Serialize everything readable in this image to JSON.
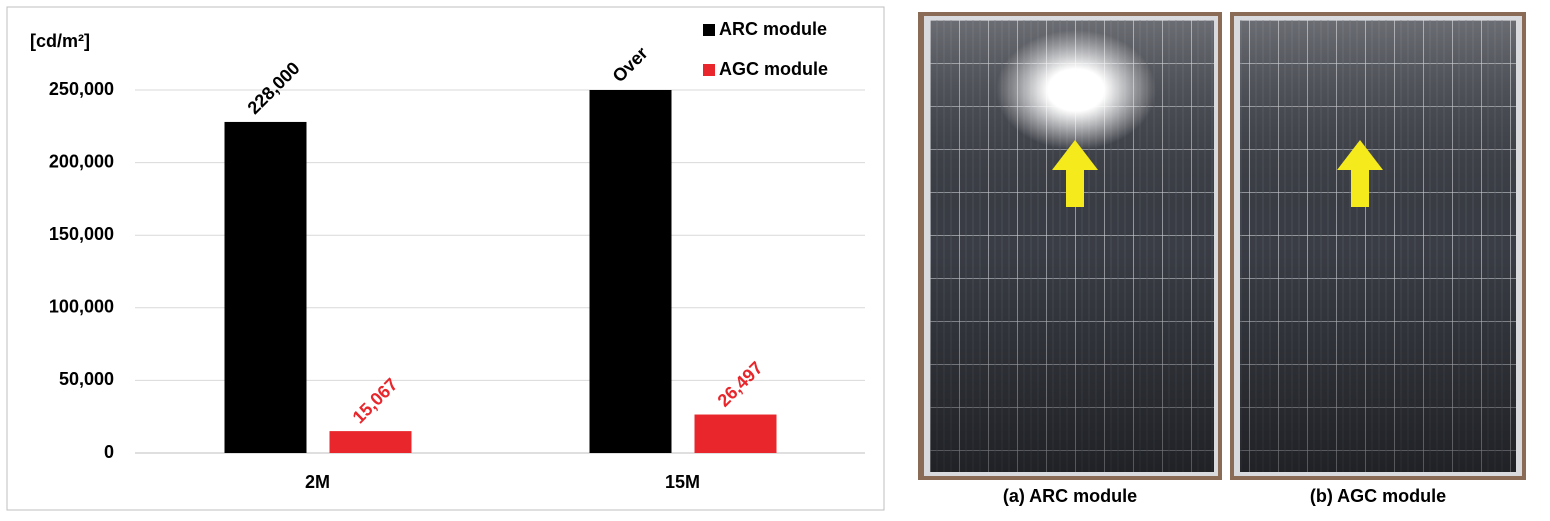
{
  "chart_data": {
    "type": "bar",
    "y_label": "[cd/m²]",
    "categories": [
      "2M",
      "15M"
    ],
    "series": [
      {
        "name": "ARC module",
        "color": "#000000",
        "values": [
          228000,
          250000
        ],
        "value_labels": [
          "228,000",
          "Over"
        ]
      },
      {
        "name": "AGC module",
        "color": "#e8262b",
        "values": [
          15067,
          26497
        ],
        "value_labels": [
          "15,067",
          "26,497"
        ]
      }
    ],
    "ylim": [
      0,
      250000
    ],
    "yticks": [
      0,
      {
        "value": 50000,
        "label": "50,000"
      },
      {
        "value": 100000,
        "label": "100,000"
      },
      {
        "value": 150000,
        "label": "150,000"
      },
      {
        "value": 200000,
        "label": "200,000"
      },
      {
        "value": 250000,
        "label": "250,000"
      }
    ],
    "grid": true,
    "legend": "top-right"
  },
  "photos": {
    "captions": [
      "(a) ARC module",
      "(b) AGC module"
    ]
  }
}
